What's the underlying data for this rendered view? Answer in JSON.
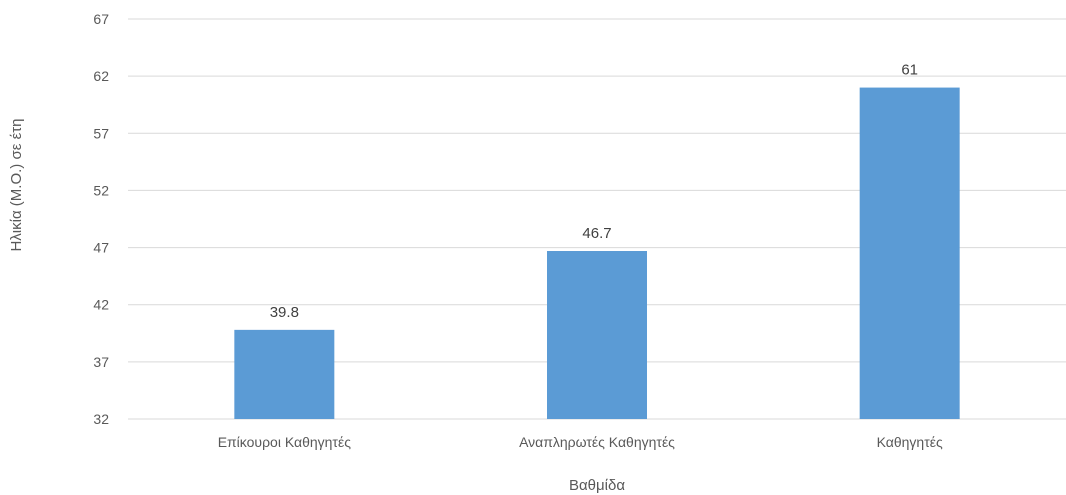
{
  "chart_data": {
    "type": "bar",
    "title": "",
    "xlabel": "Βαθμίδα",
    "ylabel": "Ηλικία (Μ.Ο.) σε έτη",
    "categories": [
      "Επίκουροι Καθηγητές",
      "Αναπληρωτές Καθηγητές",
      "Καθηγητές"
    ],
    "values": [
      39.8,
      46.7,
      61
    ],
    "data_labels": [
      "39.8",
      "46.7",
      "61"
    ],
    "ylim": [
      32,
      67
    ],
    "yticks": [
      32,
      37,
      42,
      47,
      52,
      57,
      62,
      67
    ],
    "grid": true,
    "legend": "none",
    "bar_color": "#5b9bd5"
  }
}
